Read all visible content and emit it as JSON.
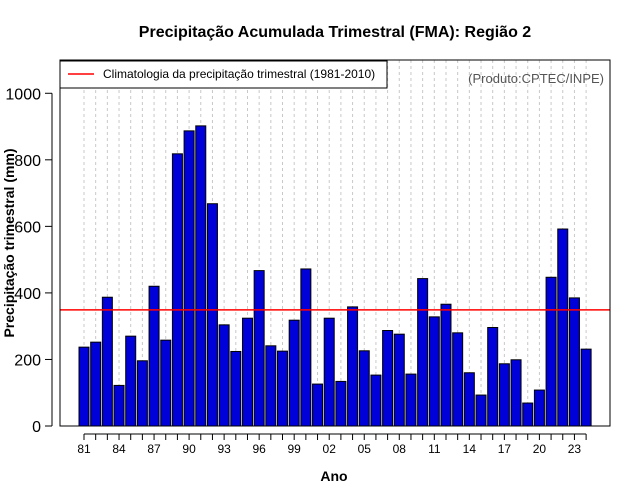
{
  "chart_data": {
    "type": "bar",
    "title": "Precipitação Acumulada Trimestral (FMA): Região 2",
    "xlabel": "Ano",
    "ylabel": "Precipitação trimestral (mm)",
    "credit": "(Produto:CPTEC/INPE)",
    "ylim": [
      0,
      1100
    ],
    "yticks": [
      "0",
      "200",
      "400",
      "600",
      "800",
      "1000"
    ],
    "years": [
      1981,
      1982,
      1983,
      1984,
      1985,
      1986,
      1987,
      1988,
      1989,
      1990,
      1991,
      1992,
      1993,
      1994,
      1995,
      1996,
      1997,
      1998,
      1999,
      2000,
      2001,
      2002,
      2003,
      2004,
      2005,
      2006,
      2007,
      2008,
      2009,
      2010,
      2011,
      2012,
      2013,
      2014,
      2015,
      2016,
      2017,
      2018,
      2019,
      2020,
      2021,
      2022,
      2023,
      2024
    ],
    "values": [
      237,
      252,
      387,
      122,
      270,
      196,
      420,
      258,
      818,
      887,
      902,
      668,
      304,
      224,
      324,
      467,
      241,
      225,
      318,
      472,
      126,
      324,
      134,
      358,
      226,
      153,
      287,
      276,
      156,
      443,
      328,
      366,
      280,
      160,
      93,
      296,
      187,
      199,
      69,
      108,
      447,
      592,
      385,
      231
    ],
    "tick_years": [
      1981,
      1984,
      1987,
      1990,
      1993,
      1996,
      1999,
      2002,
      2005,
      2008,
      2011,
      2014,
      2017,
      2020,
      2023
    ],
    "tick_labels": [
      "81",
      "84",
      "87",
      "90",
      "93",
      "96",
      "99",
      "02",
      "05",
      "08",
      "11",
      "14",
      "17",
      "20",
      "23"
    ],
    "climatology": {
      "label": "Climatologia da precipitação trimestral (1981-2010)",
      "value": 349
    },
    "grid": "vertical dashed per year",
    "legend_position": "top-left",
    "colors": {
      "bar_fill": "#0000d9",
      "bar_stroke": "#000000",
      "climatology_line": "#ff0000",
      "grid": "#c8c8c8"
    }
  }
}
